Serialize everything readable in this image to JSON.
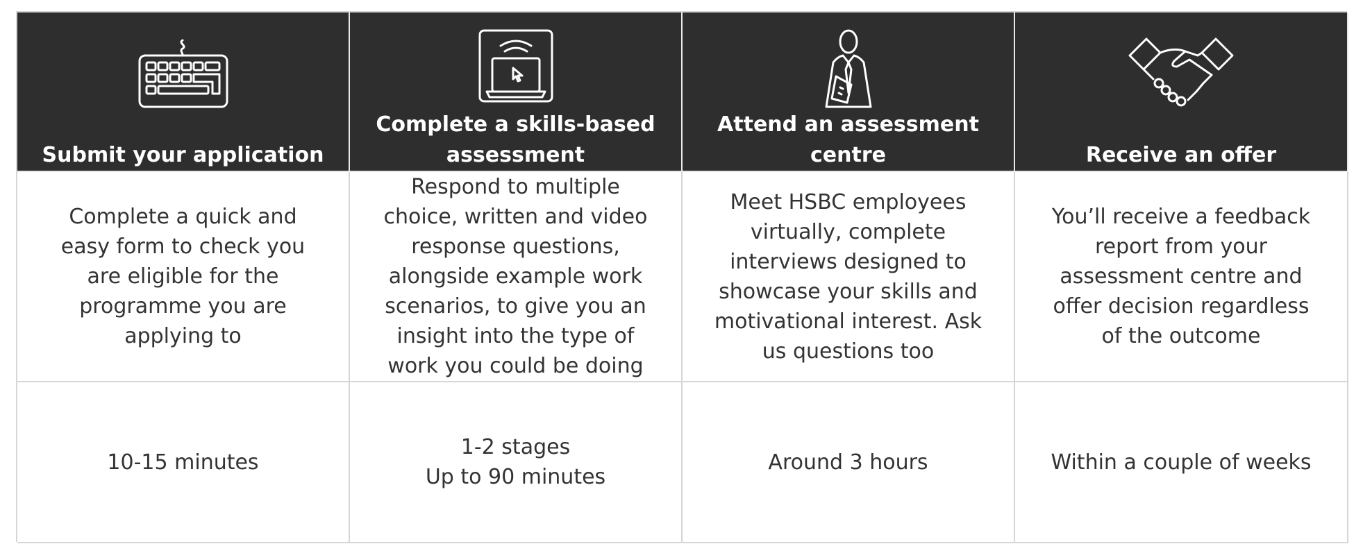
{
  "colors": {
    "header_background": "#2e2e2e",
    "header_text": "#ffffff",
    "body_text": "#333333",
    "grid_lines": "#d6d6d6"
  },
  "steps": [
    {
      "icon": "keyboard-icon",
      "title": "Submit your application",
      "description": "Complete a quick and\neasy form to check you\nare eligible for the\nprogramme you are\napplying to",
      "duration": "10-15 minutes"
    },
    {
      "icon": "laptop-icon",
      "title": "Complete a skills-based\nassessment",
      "description": "Respond to multiple\nchoice, written and video\nresponse questions,\nalongside example work\nscenarios, to give you an\ninsight into the type of\nwork you could be doing",
      "duration": "1-2 stages\nUp to 90 minutes"
    },
    {
      "icon": "employee-icon",
      "title": "Attend an assessment\ncentre",
      "description": "Meet HSBC employees\nvirtually, complete\ninterviews designed to\nshowcase your skills and\nmotivational interest. Ask\nus questions too",
      "duration": "Around 3 hours"
    },
    {
      "icon": "handshake-icon",
      "title": "Receive an offer",
      "description": "You’ll receive a feedback\nreport from your\nassessment centre and\noffer decision regardless\nof the outcome",
      "duration": "Within a couple of weeks"
    }
  ]
}
